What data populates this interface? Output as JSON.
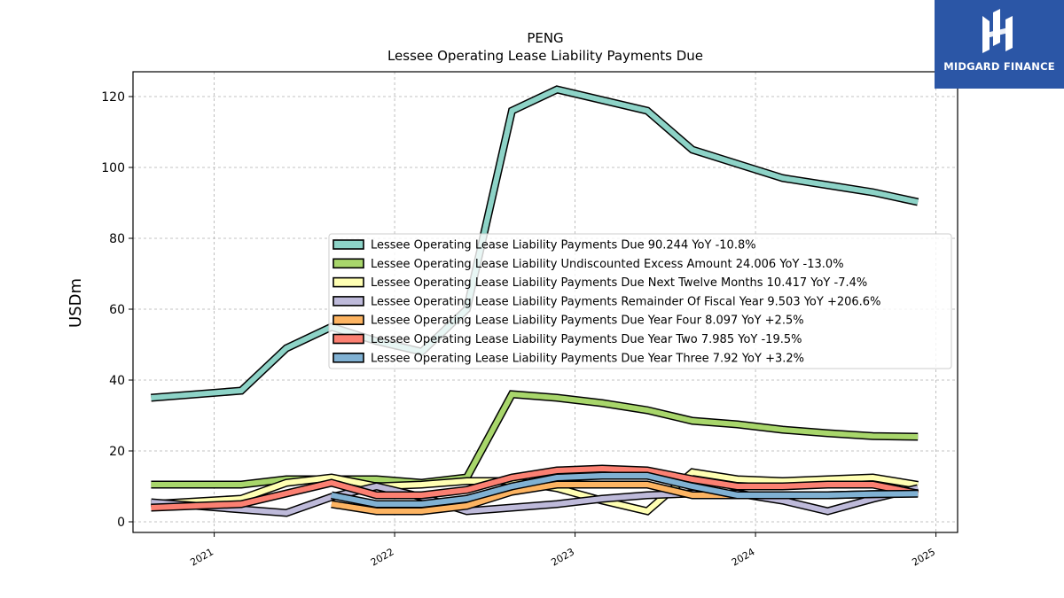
{
  "brand": {
    "name": "MIDGARD FINANCE",
    "bg_color": "#2b56a6"
  },
  "chart_data": {
    "type": "line",
    "title": "PENG",
    "subtitle": "Lessee Operating Lease Liability Payments Due",
    "xlabel": "",
    "ylabel": "USDm",
    "ylim": [
      -3,
      127
    ],
    "xlim": [
      2020.55,
      2025.12
    ],
    "xticks": [
      "2021",
      "2022",
      "2023",
      "2024",
      "2025"
    ],
    "yticks": [
      "0",
      "20",
      "40",
      "60",
      "80",
      "100",
      "120"
    ],
    "grid": true,
    "legend_position": "center-right",
    "x": [
      2020.65,
      2021.15,
      2021.4,
      2021.65,
      2021.9,
      2022.15,
      2022.4,
      2022.65,
      2022.9,
      2023.15,
      2023.4,
      2023.65,
      2023.9,
      2024.15,
      2024.4,
      2024.65,
      2024.9
    ],
    "series": [
      {
        "name": "Lessee Operating Lease Liability Payments Due",
        "legend": "Lessee Operating Lease Liability Payments Due  90.244 YoY -10.8%",
        "color": "#8dd3c7",
        "values": [
          35,
          37,
          49,
          55,
          51,
          48,
          60,
          116,
          122,
          119,
          116,
          105,
          101,
          97,
          95,
          93,
          90.244
        ]
      },
      {
        "name": "Lessee Operating Lease Liability Undiscounted Excess Amount",
        "legend": "Lessee Operating Lease Liability Undiscounted Excess Amount  24.006 YoY -13.0%",
        "color": "#a8d66b",
        "values": [
          10.5,
          10.5,
          12,
          12,
          12,
          11,
          12.5,
          36,
          35,
          33.5,
          31.5,
          28.5,
          27.5,
          26,
          25,
          24.2,
          24.006
        ]
      },
      {
        "name": "Lessee Operating Lease Liability Payments Due Next Twelve Months",
        "legend": "Lessee Operating Lease Liability Payments Due Next Twelve Months  10.417 YoY -7.4%",
        "color": "#ffffb3",
        "values": [
          5,
          6.5,
          11,
          12.5,
          10,
          10.5,
          11.5,
          11.5,
          9.5,
          6,
          3,
          14,
          12,
          11.5,
          12,
          12.5,
          10.417
        ]
      },
      {
        "name": "Lessee Operating Lease Liability Payments Remainder Of Fiscal Year",
        "legend": "Lessee Operating Lease Liability Payments Remainder Of Fiscal Year  9.503 YoY +206.6%",
        "color": "#bebada",
        "values": [
          5.5,
          3.5,
          2.5,
          7,
          10,
          7,
          3,
          4,
          5,
          6.5,
          7.5,
          8,
          8,
          6,
          3,
          6.5,
          9.503
        ]
      },
      {
        "name": "Lessee Operating Lease Liability Payments Due Year Four",
        "legend": "Lessee Operating Lease Liability Payments Due Year Four  8.097 YoY +2.5%",
        "color": "#fdb462",
        "values": [
          null,
          null,
          null,
          5,
          3,
          3,
          4.5,
          8.5,
          10.5,
          10.5,
          10.5,
          7.5,
          7.5,
          7.5,
          7.5,
          7.8,
          8.097
        ]
      },
      {
        "name": "Lessee Operating Lease Liability Payments Due Year Two",
        "legend": "Lessee Operating Lease Liability Payments Due Year Two  7.985 YoY -19.5%",
        "color": "#fb8072",
        "values": [
          4,
          5,
          8,
          11,
          7.5,
          7.5,
          9,
          12.5,
          14.5,
          15,
          14.5,
          12,
          10,
          10,
          10.5,
          10.5,
          7.985
        ]
      },
      {
        "name": "Lessee Operating Lease Liability Payments Due Year Three",
        "legend": "Lessee Operating Lease Liability Payments Due Year Three  7.92 YoY +3.2%",
        "color": "#80b1d3",
        "values": [
          null,
          null,
          null,
          7.5,
          5,
          5,
          6.5,
          10,
          12.5,
          13,
          13,
          10,
          7.5,
          7.5,
          7.5,
          7.8,
          7.92
        ]
      }
    ]
  }
}
